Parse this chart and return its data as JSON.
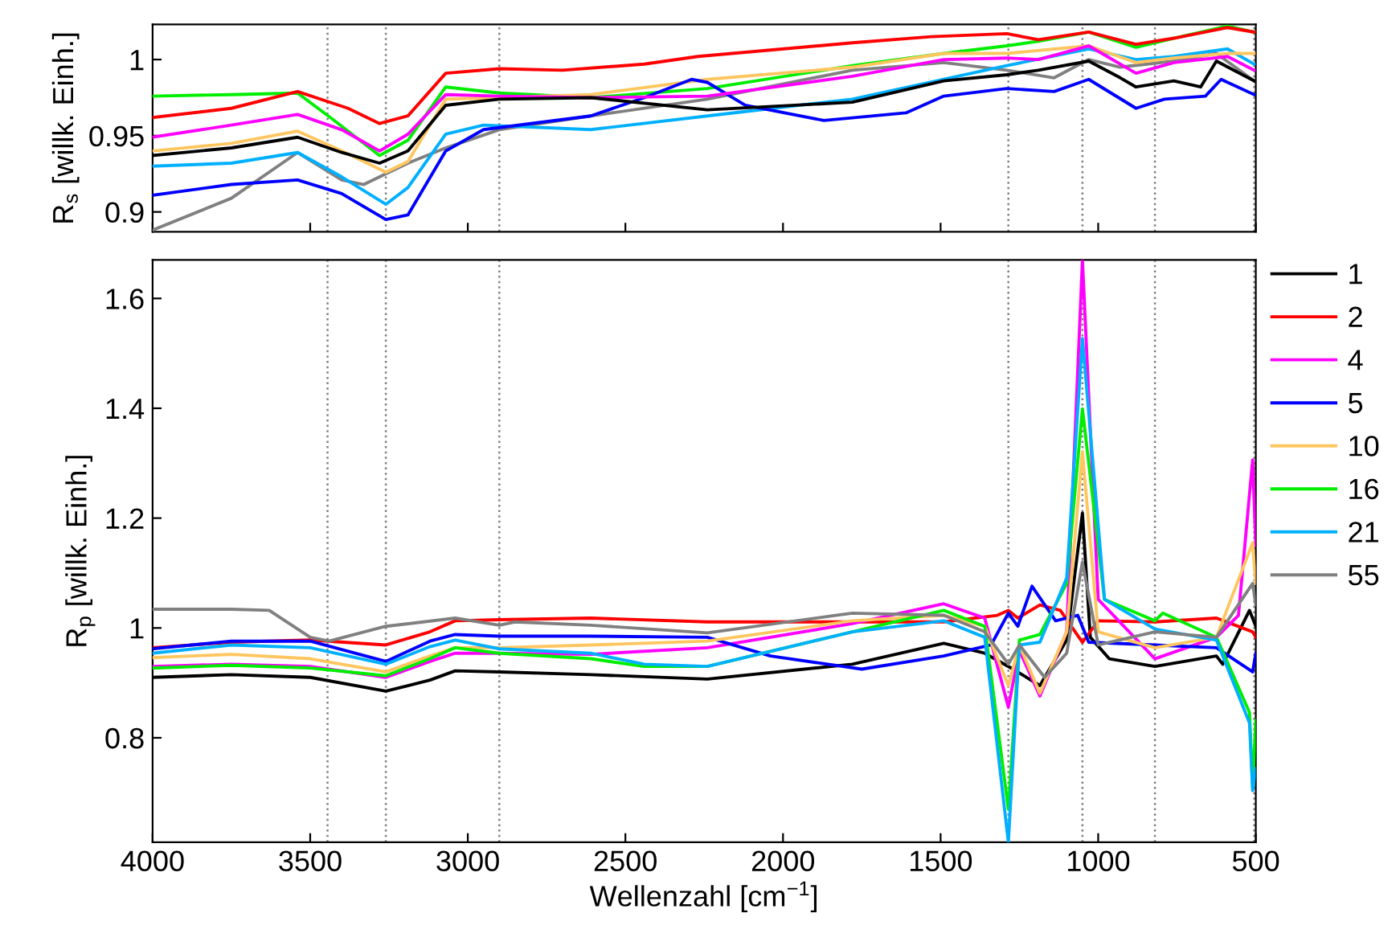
{
  "chart_data": [
    {
      "type": "line",
      "ylabel": "R$_{s}$ [willk. Einh.]",
      "xlim": [
        4000,
        500
      ],
      "xticks": [
        4000,
        3500,
        3000,
        2500,
        2000,
        1500,
        1000,
        500
      ],
      "ylim": [
        0.887,
        1.023
      ],
      "yticks": [
        0.9,
        0.95,
        1
      ],
      "tick_labels": "y",
      "grid": false,
      "legend": false,
      "line_style": "solid",
      "marker": "none",
      "ref_lines": [
        {
          "axis": "x",
          "value": 3445,
          "color": "#808080",
          "line_style": "dotted"
        },
        {
          "axis": "x",
          "value": 3260,
          "color": "#808080",
          "line_style": "dotted"
        },
        {
          "axis": "x",
          "value": 2900,
          "color": "#808080",
          "line_style": "dotted"
        },
        {
          "axis": "x",
          "value": 1285,
          "color": "#808080",
          "line_style": "dotted"
        },
        {
          "axis": "x",
          "value": 1050,
          "color": "#808080",
          "line_style": "dotted"
        },
        {
          "axis": "x",
          "value": 820,
          "color": "#808080",
          "line_style": "dotted"
        },
        {
          "axis": "x",
          "value": 505,
          "color": "#808080",
          "line_style": "dotted"
        }
      ],
      "series": [
        {
          "color": "#808080",
          "x": [
            4000,
            3750,
            3540,
            3400,
            3330,
            3190,
            3070,
            2900,
            2610,
            2240,
            1780,
            1490,
            1290,
            1140,
            1030,
            930,
            760,
            625,
            505
          ],
          "values": [
            0.888,
            0.909,
            0.939,
            0.921,
            0.918,
            0.932,
            0.942,
            0.954,
            0.963,
            0.974,
            0.993,
            0.998,
            0.993,
            0.988,
            1.0,
            0.995,
            0.999,
            1.004,
            0.986
          ]
        },
        {
          "color": "#00b0ff",
          "x": [
            4000,
            3750,
            3540,
            3400,
            3260,
            3190,
            3070,
            2950,
            2610,
            2240,
            1780,
            1490,
            1290,
            1030,
            880,
            760,
            590,
            505
          ],
          "values": [
            0.93,
            0.932,
            0.939,
            0.923,
            0.905,
            0.916,
            0.951,
            0.957,
            0.954,
            0.963,
            0.974,
            0.987,
            0.996,
            1.007,
            1.0,
            1.002,
            1.007,
            0.997
          ]
        },
        {
          "color": "#00ee00",
          "x": [
            4000,
            3750,
            3540,
            3430,
            3280,
            3190,
            3070,
            2900,
            2610,
            2240,
            1780,
            1490,
            1290,
            1190,
            1030,
            880,
            760,
            590,
            505
          ],
          "values": [
            0.976,
            0.977,
            0.978,
            0.961,
            0.937,
            0.947,
            0.982,
            0.978,
            0.975,
            0.981,
            0.996,
            1.004,
            1.009,
            1.012,
            1.018,
            1.008,
            1.014,
            1.022,
            1.018
          ]
        },
        {
          "color": "#ffc660",
          "x": [
            4000,
            3750,
            3540,
            3400,
            3260,
            3190,
            3070,
            2900,
            2610,
            2240,
            1780,
            1490,
            1290,
            1030,
            880,
            760,
            590,
            505
          ],
          "values": [
            0.94,
            0.945,
            0.953,
            0.94,
            0.926,
            0.933,
            0.974,
            0.975,
            0.977,
            0.987,
            0.995,
            1.004,
            1.004,
            1.009,
            0.998,
            1.001,
            1.004,
            1.004
          ]
        },
        {
          "color": "#0000ff",
          "x": [
            4000,
            3750,
            3540,
            3400,
            3260,
            3190,
            3070,
            2950,
            2610,
            2440,
            2290,
            2240,
            2120,
            1870,
            1610,
            1490,
            1290,
            1140,
            1030,
            880,
            790,
            660,
            610,
            505
          ],
          "values": [
            0.911,
            0.918,
            0.921,
            0.912,
            0.895,
            0.898,
            0.94,
            0.954,
            0.963,
            0.975,
            0.987,
            0.985,
            0.97,
            0.96,
            0.965,
            0.976,
            0.981,
            0.979,
            0.987,
            0.968,
            0.974,
            0.976,
            0.987,
            0.977
          ]
        },
        {
          "color": "#ff00ff",
          "x": [
            4000,
            3750,
            3540,
            3400,
            3280,
            3190,
            3070,
            2900,
            2610,
            2240,
            1780,
            1490,
            1290,
            1190,
            1030,
            880,
            760,
            590,
            505
          ],
          "values": [
            0.949,
            0.957,
            0.964,
            0.954,
            0.94,
            0.951,
            0.977,
            0.976,
            0.975,
            0.976,
            0.989,
            1.0,
            1.001,
            1.0,
            1.009,
            0.991,
            0.998,
            1.002,
            0.993
          ]
        },
        {
          "color": "#ff0000",
          "x": [
            4000,
            3750,
            3540,
            3380,
            3280,
            3190,
            3070,
            2900,
            2700,
            2440,
            2270,
            1780,
            1530,
            1290,
            1190,
            1030,
            880,
            760,
            590,
            505
          ],
          "values": [
            0.962,
            0.968,
            0.979,
            0.968,
            0.958,
            0.963,
            0.991,
            0.994,
            0.993,
            0.997,
            1.002,
            1.011,
            1.015,
            1.017,
            1.013,
            1.018,
            1.01,
            1.014,
            1.021,
            1.018
          ]
        },
        {
          "color": "#000000",
          "x": [
            4000,
            3750,
            3540,
            3400,
            3280,
            3190,
            3070,
            2900,
            2610,
            2240,
            1780,
            1490,
            1290,
            1190,
            1030,
            930,
            880,
            760,
            675,
            625,
            505
          ],
          "values": [
            0.937,
            0.942,
            0.949,
            0.939,
            0.932,
            0.94,
            0.97,
            0.974,
            0.975,
            0.967,
            0.972,
            0.986,
            0.99,
            0.993,
            0.999,
            0.988,
            0.982,
            0.986,
            0.982,
            0.999,
            0.986
          ]
        }
      ]
    },
    {
      "type": "line",
      "ylabel": "R$_{p}$ [willk. Einh.]",
      "xlabel": "Wellenzahl [cm$^{−1}$]",
      "xlim": [
        4000,
        500
      ],
      "xticks": [
        4000,
        3500,
        3000,
        2500,
        2000,
        1500,
        1000,
        500
      ],
      "ylim": [
        0.61,
        1.67
      ],
      "yticks": [
        0.8,
        1,
        1.2,
        1.4,
        1.6
      ],
      "grid": false,
      "legend": "right",
      "line_style": "solid",
      "marker": "none",
      "ref_lines": [
        {
          "axis": "x",
          "value": 3445,
          "color": "#808080",
          "line_style": "dotted"
        },
        {
          "axis": "x",
          "value": 3260,
          "color": "#808080",
          "line_style": "dotted"
        },
        {
          "axis": "x",
          "value": 2900,
          "color": "#808080",
          "line_style": "dotted"
        },
        {
          "axis": "x",
          "value": 1285,
          "color": "#808080",
          "line_style": "dotted"
        },
        {
          "axis": "x",
          "value": 1050,
          "color": "#808080",
          "line_style": "dotted"
        },
        {
          "axis": "x",
          "value": 820,
          "color": "#808080",
          "line_style": "dotted"
        },
        {
          "axis": "x",
          "value": 505,
          "color": "#808080",
          "line_style": "dotted"
        }
      ],
      "series": [
        {
          "name": "1",
          "color": "#000000",
          "x": [
            4000,
            3750,
            3500,
            3260,
            3120,
            3040,
            2900,
            2610,
            2240,
            1780,
            1490,
            1360,
            1270,
            1185,
            1100,
            1050,
            1025,
            965,
            820,
            625,
            605,
            520,
            500
          ],
          "values": [
            0.91,
            0.915,
            0.91,
            0.885,
            0.905,
            0.922,
            0.92,
            0.915,
            0.907,
            0.934,
            0.972,
            0.954,
            0.925,
            0.895,
            0.978,
            1.209,
            0.983,
            0.944,
            0.93,
            0.949,
            0.934,
            1.032,
            1.003
          ]
        },
        {
          "name": "2",
          "color": "#ff0000",
          "x": [
            4000,
            3750,
            3500,
            3260,
            3120,
            3040,
            2900,
            2610,
            2240,
            1780,
            1490,
            1320,
            1285,
            1255,
            1185,
            1120,
            1050,
            1000,
            820,
            625,
            510,
            500
          ],
          "values": [
            0.964,
            0.974,
            0.978,
            0.969,
            0.993,
            1.013,
            1.015,
            1.018,
            1.011,
            1.011,
            1.011,
            1.023,
            1.032,
            1.018,
            1.042,
            1.032,
            0.974,
            1.013,
            1.011,
            1.018,
            0.993,
            0.983
          ]
        },
        {
          "name": "4",
          "color": "#ff00ff",
          "x": [
            4000,
            3750,
            3500,
            3260,
            3120,
            3040,
            2900,
            2610,
            2240,
            1780,
            1490,
            1360,
            1285,
            1250,
            1185,
            1100,
            1050,
            1000,
            820,
            625,
            555,
            510,
            500
          ],
          "values": [
            0.93,
            0.934,
            0.93,
            0.91,
            0.939,
            0.954,
            0.954,
            0.952,
            0.964,
            1.008,
            1.044,
            1.018,
            0.856,
            0.959,
            0.876,
            0.993,
            1.67,
            1.052,
            0.944,
            0.983,
            1.023,
            1.306,
            1.15
          ]
        },
        {
          "name": "5",
          "color": "#0000ff",
          "x": [
            4000,
            3750,
            3500,
            3260,
            3120,
            3040,
            2900,
            2610,
            2240,
            2040,
            1750,
            1490,
            1340,
            1285,
            1255,
            1210,
            1135,
            1065,
            1030,
            820,
            625,
            510,
            500
          ],
          "values": [
            0.962,
            0.976,
            0.976,
            0.939,
            0.976,
            0.988,
            0.985,
            0.985,
            0.983,
            0.949,
            0.925,
            0.949,
            0.969,
            1.027,
            1.003,
            1.076,
            1.013,
            1.023,
            0.974,
            0.969,
            0.964,
            0.92,
            0.954
          ]
        },
        {
          "name": "10",
          "color": "#ffc660",
          "x": [
            4000,
            3750,
            3500,
            3260,
            3120,
            3040,
            2900,
            2610,
            2240,
            1780,
            1490,
            1360,
            1285,
            1250,
            1185,
            1100,
            1050,
            1000,
            820,
            625,
            510,
            500
          ],
          "values": [
            0.946,
            0.952,
            0.944,
            0.92,
            0.949,
            0.964,
            0.964,
            0.969,
            0.976,
            1.013,
            1.023,
            1.003,
            0.895,
            0.969,
            0.881,
            0.993,
            1.321,
            0.993,
            0.964,
            0.983,
            1.155,
            1.081
          ]
        },
        {
          "name": "16",
          "color": "#00ee00",
          "x": [
            4000,
            3750,
            3500,
            3260,
            3120,
            3040,
            2900,
            2610,
            2440,
            2240,
            1780,
            1490,
            1360,
            1285,
            1250,
            1185,
            1100,
            1050,
            980,
            820,
            795,
            625,
            520,
            510,
            500
          ],
          "values": [
            0.927,
            0.932,
            0.927,
            0.913,
            0.944,
            0.964,
            0.954,
            0.944,
            0.93,
            0.93,
            0.993,
            1.032,
            1.003,
            0.67,
            0.978,
            0.988,
            1.081,
            1.399,
            1.052,
            1.013,
            1.027,
            0.983,
            0.846,
            0.709,
            0.832
          ]
        },
        {
          "name": "21",
          "color": "#00b0ff",
          "x": [
            4000,
            3750,
            3500,
            3260,
            3120,
            3040,
            2900,
            2610,
            2440,
            2240,
            1780,
            1490,
            1360,
            1285,
            1250,
            1185,
            1100,
            1050,
            980,
            820,
            625,
            520,
            510,
            500
          ],
          "values": [
            0.954,
            0.969,
            0.964,
            0.934,
            0.966,
            0.978,
            0.962,
            0.954,
            0.934,
            0.93,
            0.993,
            1.013,
            0.983,
            0.61,
            0.969,
            0.974,
            1.091,
            1.527,
            1.052,
            0.998,
            0.978,
            0.827,
            0.704,
            0.744
          ]
        },
        {
          "name": "55",
          "color": "#808080",
          "x": [
            4000,
            3750,
            3630,
            3500,
            3440,
            3260,
            3040,
            2900,
            2850,
            2610,
            2240,
            1780,
            1490,
            1360,
            1285,
            1250,
            1170,
            1100,
            1050,
            1000,
            820,
            625,
            510,
            500
          ],
          "values": [
            1.034,
            1.034,
            1.032,
            0.983,
            0.976,
            1.003,
            1.018,
            1.005,
            1.011,
            1.005,
            0.991,
            1.027,
            1.023,
            0.993,
            0.934,
            0.969,
            0.91,
            0.954,
            1.12,
            0.969,
            0.993,
            0.983,
            1.081,
            1.042
          ]
        }
      ]
    }
  ]
}
